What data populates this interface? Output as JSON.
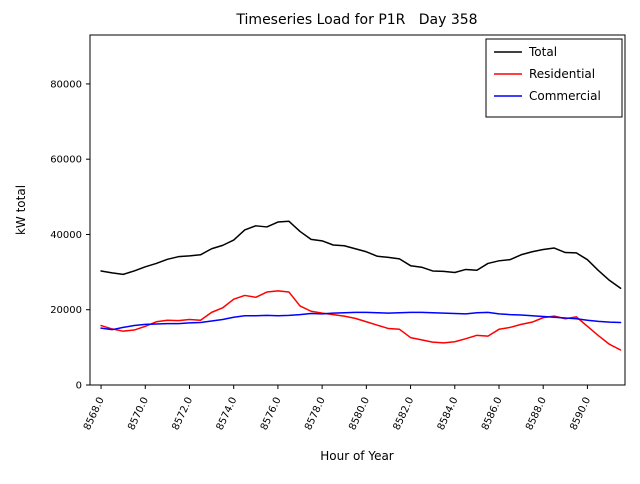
{
  "figure": {
    "background": "#ffffff",
    "axes_edge_color": "#000000"
  },
  "chart_data": {
    "type": "line",
    "title": "Timeseries Load for P1R   Day 358",
    "xlabel": "Hour of Year",
    "ylabel": "kW total",
    "xlim": [
      8567.5,
      8591.7
    ],
    "ylim": [
      0,
      93000
    ],
    "grid": false,
    "legend_position": "upper right",
    "xticks": [
      8568,
      8570,
      8572,
      8574,
      8576,
      8578,
      8580,
      8582,
      8584,
      8586,
      8588,
      8590
    ],
    "xtick_labels": [
      "8568.0",
      "8570.0",
      "8572.0",
      "8574.0",
      "8576.0",
      "8578.0",
      "8580.0",
      "8582.0",
      "8584.0",
      "8586.0",
      "8588.0",
      "8590.0"
    ],
    "yticks": [
      0,
      20000,
      40000,
      60000,
      80000
    ],
    "ytick_labels": [
      "0",
      "20000",
      "40000",
      "60000",
      "80000"
    ],
    "x": [
      8568.0,
      8568.5,
      8569.0,
      8569.5,
      8570.0,
      8570.5,
      8571.0,
      8571.5,
      8572.0,
      8572.5,
      8573.0,
      8573.5,
      8574.0,
      8574.5,
      8575.0,
      8575.5,
      8576.0,
      8576.5,
      8577.0,
      8577.5,
      8578.0,
      8578.5,
      8579.0,
      8579.5,
      8580.0,
      8580.5,
      8581.0,
      8581.5,
      8582.0,
      8582.5,
      8583.0,
      8583.5,
      8584.0,
      8584.5,
      8585.0,
      8585.5,
      8586.0,
      8586.5,
      8587.0,
      8587.5,
      8588.0,
      8588.5,
      8589.0,
      8589.5,
      8590.0,
      8590.5,
      8591.0,
      8591.5
    ],
    "series": [
      {
        "name": "Total",
        "color": "#000000",
        "values": [
          30300,
          29800,
          29400,
          30300,
          31400,
          32300,
          33400,
          34100,
          34300,
          34600,
          36200,
          37100,
          38500,
          41200,
          42300,
          42000,
          43300,
          43500,
          40800,
          38700,
          38300,
          37200,
          37000,
          36200,
          35400,
          34200,
          33900,
          33500,
          31700,
          31300,
          30300,
          30200,
          29900,
          30700,
          30500,
          32300,
          33000,
          33300,
          34600,
          35400,
          36000,
          36400,
          35200,
          35100,
          33300,
          30400,
          27800,
          25700
        ]
      },
      {
        "name": "Residential",
        "color": "#ff0000",
        "values": [
          15800,
          14900,
          14300,
          14600,
          15600,
          16800,
          17200,
          17100,
          17400,
          17200,
          19300,
          20500,
          22800,
          23800,
          23300,
          24700,
          25000,
          24700,
          21000,
          19600,
          19100,
          18700,
          18300,
          17700,
          16800,
          15900,
          15000,
          14800,
          12600,
          12000,
          11400,
          11200,
          11500,
          12300,
          13200,
          13000,
          14800,
          15300,
          16100,
          16700,
          17900,
          18300,
          17600,
          18100,
          15600,
          13100,
          10800,
          9300
        ]
      },
      {
        "name": "Commercial",
        "color": "#0000ff",
        "values": [
          15100,
          14700,
          15300,
          15800,
          16100,
          16200,
          16300,
          16300,
          16500,
          16600,
          17000,
          17400,
          18000,
          18400,
          18400,
          18500,
          18400,
          18500,
          18700,
          19000,
          18900,
          19100,
          19200,
          19300,
          19300,
          19200,
          19100,
          19200,
          19300,
          19300,
          19200,
          19100,
          19000,
          18900,
          19200,
          19300,
          18900,
          18700,
          18600,
          18400,
          18200,
          18000,
          17800,
          17600,
          17200,
          16900,
          16700,
          16600
        ]
      }
    ]
  }
}
